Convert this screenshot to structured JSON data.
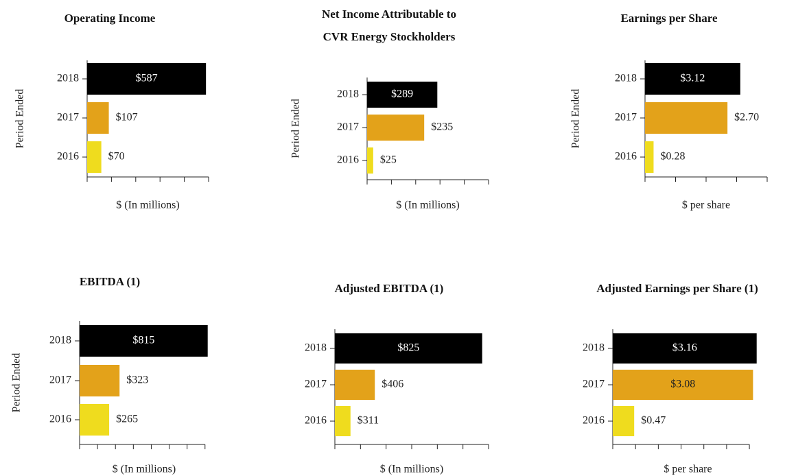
{
  "chart_data": [
    {
      "type": "bar",
      "title": [
        "Operating Income"
      ],
      "y_label": "Period Ended",
      "x_label": "$ (In millions)",
      "categories": [
        "2018",
        "2017",
        "2016"
      ],
      "values": [
        587,
        107,
        70
      ],
      "value_labels": [
        "$587",
        "$107",
        "$70"
      ],
      "colors": [
        "#000000",
        "#e3a21a",
        "#efdc1e"
      ],
      "labels_inside": [
        true,
        false,
        false
      ],
      "xlim": [
        0,
        600
      ],
      "xticks": [
        0,
        120,
        240,
        360,
        480,
        600
      ]
    },
    {
      "type": "bar",
      "title": [
        "Net Income Attributable to",
        "CVR Energy Stockholders"
      ],
      "y_label": "Period Ended",
      "x_label": "$ (In millions)",
      "categories": [
        "2018",
        "2017",
        "2016"
      ],
      "values": [
        289,
        235,
        25
      ],
      "value_labels": [
        "$289",
        "$235",
        "$25"
      ],
      "colors": [
        "#000000",
        "#e3a21a",
        "#efdc1e"
      ],
      "labels_inside": [
        true,
        false,
        false
      ],
      "xlim": [
        0,
        500
      ],
      "xticks": [
        0,
        100,
        200,
        300,
        400,
        500
      ]
    },
    {
      "type": "bar",
      "title": [
        "Earnings per Share"
      ],
      "y_label": "Period Ended",
      "x_label": "$ per share",
      "categories": [
        "2018",
        "2017",
        "2016"
      ],
      "values": [
        3.12,
        2.7,
        0.28
      ],
      "value_labels": [
        "$3.12",
        "$2.70",
        "$0.28"
      ],
      "colors": [
        "#000000",
        "#e3a21a",
        "#efdc1e"
      ],
      "labels_inside": [
        true,
        false,
        false
      ],
      "xlim": [
        0,
        4
      ],
      "xticks": [
        0,
        1,
        2,
        3,
        4
      ]
    },
    {
      "type": "bar",
      "title": [
        "EBITDA (1)"
      ],
      "y_label": "Period Ended",
      "x_label": "$ (In millions)",
      "categories": [
        "2018",
        "2017",
        "2016"
      ],
      "values": [
        815,
        323,
        265
      ],
      "value_labels": [
        "$815",
        "$323",
        "$265"
      ],
      "colors": [
        "#000000",
        "#e3a21a",
        "#efdc1e"
      ],
      "labels_inside": [
        true,
        false,
        false
      ],
      "xlim": [
        100,
        820
      ],
      "xticks": [
        100,
        200,
        300,
        400,
        500,
        600,
        700,
        800
      ]
    },
    {
      "type": "bar",
      "title": [
        "Adjusted EBITDA (1)"
      ],
      "x_label": "$ (In millions)",
      "categories": [
        "2018",
        "2017",
        "2016"
      ],
      "values": [
        825,
        406,
        311
      ],
      "value_labels": [
        "$825",
        "$406",
        "$311"
      ],
      "colors": [
        "#000000",
        "#e3a21a",
        "#efdc1e"
      ],
      "labels_inside": [
        true,
        false,
        false
      ],
      "xlim": [
        250,
        850
      ],
      "xticks": [
        250,
        350,
        450,
        550,
        650,
        750,
        850
      ]
    },
    {
      "type": "bar",
      "title": [
        "Adjusted Earnings per Share (1)"
      ],
      "x_label": "$ per share",
      "categories": [
        "2018",
        "2017",
        "2016"
      ],
      "values": [
        3.16,
        3.08,
        0.47
      ],
      "value_labels": [
        "$3.16",
        "$3.08",
        "$0.47"
      ],
      "colors": [
        "#000000",
        "#e3a21a",
        "#efdc1e"
      ],
      "labels_inside": [
        true,
        true,
        false
      ],
      "xlim": [
        0,
        3.3
      ],
      "xticks": [
        0,
        0.5,
        1,
        1.5,
        2,
        2.5,
        3
      ]
    }
  ]
}
